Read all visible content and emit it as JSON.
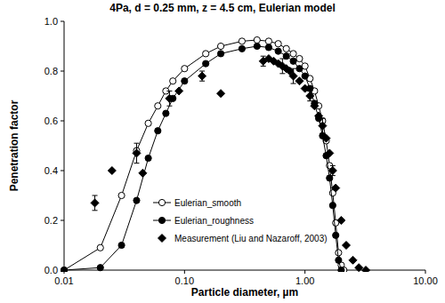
{
  "chart_data": {
    "type": "line",
    "title": "4Pa, d = 0.25 mm, z = 4.5 cm, Eulerian model",
    "x_label": "Particle diameter, µm",
    "y_label": "Penetration factor",
    "log": "x",
    "grid": false,
    "legend": "left",
    "xlim": [
      0.01,
      10
    ],
    "ylim": [
      0,
      1
    ],
    "xticks": [
      0.01,
      {
        "value": 0.1,
        "label": "0.10"
      },
      {
        "value": 1,
        "label": "1.00"
      },
      {
        "value": 10,
        "label": "10.00"
      }
    ],
    "yticks": [
      {
        "value": 0,
        "label": "0.0"
      },
      0.2,
      0.4,
      0.6,
      0.8,
      {
        "value": 1,
        "label": "1.0"
      }
    ],
    "series": [
      {
        "name": "Eulerian_smooth",
        "color": "#000000",
        "marker": "open-circle",
        "line_style": "solid",
        "x": [
          0.01,
          0.02,
          0.03,
          0.04,
          0.05,
          0.06,
          0.07,
          0.08,
          0.1,
          0.15,
          0.2,
          0.3,
          0.4,
          0.5,
          0.6,
          0.7,
          0.8,
          0.9,
          1.0,
          1.1,
          1.2,
          1.3,
          1.4,
          1.5,
          1.6,
          1.7,
          1.8,
          1.9,
          2.0,
          2.1
        ],
        "values": [
          0,
          0.09,
          0.3,
          0.48,
          0.59,
          0.66,
          0.72,
          0.76,
          0.81,
          0.87,
          0.9,
          0.92,
          0.925,
          0.92,
          0.91,
          0.89,
          0.87,
          0.85,
          0.82,
          0.77,
          0.72,
          0.66,
          0.6,
          0.52,
          0.42,
          0.31,
          0.19,
          0.07,
          0.02,
          0
        ]
      },
      {
        "name": "Eulerian_roughness",
        "color": "#000000",
        "marker": "circle",
        "line_style": "solid",
        "x": [
          0.01,
          0.02,
          0.03,
          0.04,
          0.05,
          0.06,
          0.07,
          0.08,
          0.1,
          0.15,
          0.2,
          0.3,
          0.4,
          0.5,
          0.6,
          0.7,
          0.8,
          0.9,
          1.0,
          1.1,
          1.2,
          1.3,
          1.4,
          1.5,
          1.6,
          1.7,
          1.8,
          1.9,
          2.0
        ],
        "values": [
          0,
          0.01,
          0.1,
          0.28,
          0.45,
          0.56,
          0.63,
          0.69,
          0.76,
          0.83,
          0.87,
          0.89,
          0.9,
          0.895,
          0.88,
          0.86,
          0.84,
          0.81,
          0.78,
          0.73,
          0.67,
          0.61,
          0.54,
          0.46,
          0.37,
          0.26,
          0.14,
          0.04,
          0
        ]
      },
      {
        "name": "Measurement (Liu and Nazaroff, 2003)",
        "color": "#000000",
        "marker": "diamond",
        "line_style": "none",
        "x": [
          0.018,
          0.025,
          0.04,
          0.045,
          0.075,
          0.09,
          0.14,
          0.2,
          0.45,
          0.5,
          0.55,
          0.6,
          0.65,
          0.7,
          0.75,
          0.8,
          0.9,
          1.0,
          1.1,
          1.2,
          1.3,
          1.4,
          1.5,
          1.6,
          1.7,
          1.8,
          2.0,
          2.2,
          2.5,
          2.8,
          3.2
        ],
        "values": [
          0.27,
          0.4,
          0.47,
          0.39,
          0.69,
          0.72,
          0.78,
          0.71,
          0.84,
          0.85,
          0.84,
          0.83,
          0.82,
          0.81,
          0.8,
          0.78,
          0.76,
          0.73,
          0.7,
          0.66,
          0.62,
          0.58,
          0.53,
          0.47,
          0.4,
          0.33,
          0.2,
          0.1,
          0.04,
          0.01,
          0.0
        ],
        "errors": [
          0.03,
          null,
          0.04,
          null,
          0.03,
          null,
          0.02,
          null,
          0.02,
          null,
          null,
          null,
          0.03,
          null,
          null,
          0.03,
          null,
          null,
          0.02,
          null,
          null,
          0.03,
          null,
          null,
          0.02,
          null,
          null,
          null,
          null,
          null,
          null
        ]
      }
    ]
  }
}
